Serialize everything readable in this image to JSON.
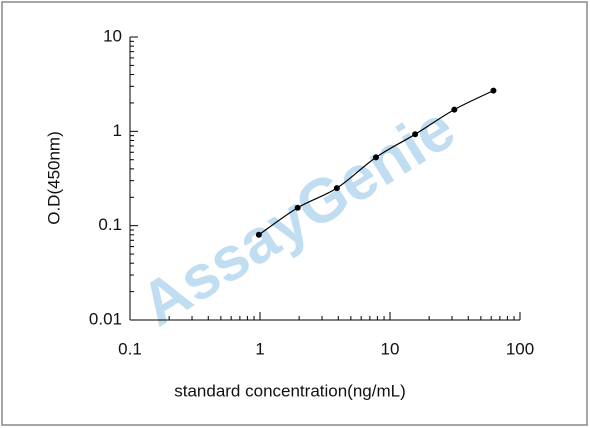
{
  "chart_data": {
    "type": "scatter",
    "xlabel": "standard concentration(ng/mL)",
    "ylabel": "O.D(450nm)",
    "watermark": "AssayGenie",
    "xscale": "log",
    "yscale": "log",
    "xlim": [
      0.1,
      100
    ],
    "ylim": [
      0.01,
      10
    ],
    "xticks": [
      0.1,
      1,
      10,
      100
    ],
    "yticks": [
      0.01,
      0.1,
      1,
      10
    ],
    "series": [
      {
        "color": "#000000",
        "x": [
          0.98,
          1.95,
          3.9,
          7.8,
          15.6,
          31.25,
          62.5
        ],
        "values": [
          0.08,
          0.155,
          0.25,
          0.53,
          0.93,
          1.7,
          2.7
        ]
      }
    ]
  }
}
